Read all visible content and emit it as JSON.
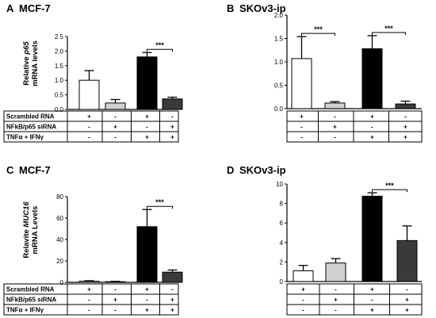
{
  "chart_data": [
    {
      "type": "bar",
      "panel_label": "A",
      "title": "MCF-7",
      "ylabel_prefix": "Relative ",
      "ylabel_italic": "p65",
      "ylabel_line2": "mRNA levels",
      "ylim": [
        0,
        2.5
      ],
      "yticks": [
        "0.0",
        "0.5",
        "1.0",
        "1.5",
        "2.0",
        "2.5"
      ],
      "values": [
        1.0,
        0.22,
        1.8,
        0.36
      ],
      "errors": [
        0.33,
        0.12,
        0.15,
        0.06
      ],
      "bar_colors": [
        "#ffffff",
        "#d0d0d0",
        "#000000",
        "#3a3a3a"
      ],
      "significance": {
        "from": 2,
        "to": 3,
        "label": "***"
      },
      "table": {
        "rows": [
          "Scrambled RNA",
          "NFkB/p65 siRNA",
          "TNFα + IFNγ"
        ],
        "signs": [
          [
            "+",
            "-",
            "+",
            "-"
          ],
          [
            "-",
            "+",
            "-",
            "+"
          ],
          [
            "-",
            "-",
            "+",
            "+"
          ]
        ]
      }
    },
    {
      "type": "bar",
      "panel_label": "B",
      "title": "SKOv3-ip",
      "ylim": [
        0,
        2.0
      ],
      "yticks": [
        "0.0",
        "0.5",
        "1.0",
        "1.5",
        "2.0"
      ],
      "values": [
        1.07,
        0.12,
        1.28,
        0.1
      ],
      "errors": [
        0.47,
        0.03,
        0.28,
        0.06
      ],
      "bar_colors": [
        "#ffffff",
        "#d0d0d0",
        "#000000",
        "#3a3a3a"
      ],
      "significance": [
        {
          "from": 0,
          "to": 1,
          "label": "***"
        },
        {
          "from": 2,
          "to": 3,
          "label": "***"
        }
      ],
      "table": {
        "rows": [],
        "signs": [
          [
            "+",
            "-",
            "+",
            "-"
          ],
          [
            "-",
            "+",
            "-",
            "+"
          ],
          [
            "-",
            "-",
            "+",
            "+"
          ]
        ]
      }
    },
    {
      "type": "bar",
      "panel_label": "C",
      "title": "MCF-7",
      "ylabel_prefix": "Relavite ",
      "ylabel_italic": "MUC16",
      "ylabel_line2": "mRNA Levels",
      "ylim": [
        0,
        80
      ],
      "yticks": [
        "0",
        "20",
        "40",
        "60",
        "80"
      ],
      "values": [
        1.0,
        0.6,
        52,
        9.5
      ],
      "errors": [
        0.5,
        0.3,
        16,
        2.0
      ],
      "bar_colors": [
        "#ffffff",
        "#d0d0d0",
        "#000000",
        "#3a3a3a"
      ],
      "significance": {
        "from": 2,
        "to": 3,
        "label": "***"
      },
      "table": {
        "rows": [
          "Scrambled RNA",
          "NFkB/p65 siRNA",
          "TNFα + IFNγ"
        ],
        "signs": [
          [
            "+",
            "-",
            "+",
            "-"
          ],
          [
            "-",
            "+",
            "-",
            "+"
          ],
          [
            "-",
            "-",
            "+",
            "+"
          ]
        ]
      }
    },
    {
      "type": "bar",
      "panel_label": "D",
      "title": "SKOv3-ip",
      "ylim": [
        0,
        10
      ],
      "yticks": [
        "0",
        "2",
        "4",
        "6",
        "8",
        "10"
      ],
      "values": [
        1.1,
        1.9,
        8.75,
        4.2
      ],
      "errors": [
        0.55,
        0.45,
        0.35,
        1.5
      ],
      "bar_colors": [
        "#ffffff",
        "#d0d0d0",
        "#000000",
        "#3a3a3a"
      ],
      "significance": {
        "from": 2,
        "to": 3,
        "label": "***"
      },
      "table": {
        "rows": [],
        "signs": [
          [
            "+",
            "-",
            "+",
            "-"
          ],
          [
            "-",
            "+",
            "-",
            "+"
          ],
          [
            "-",
            "-",
            "+",
            "+"
          ]
        ]
      }
    }
  ]
}
